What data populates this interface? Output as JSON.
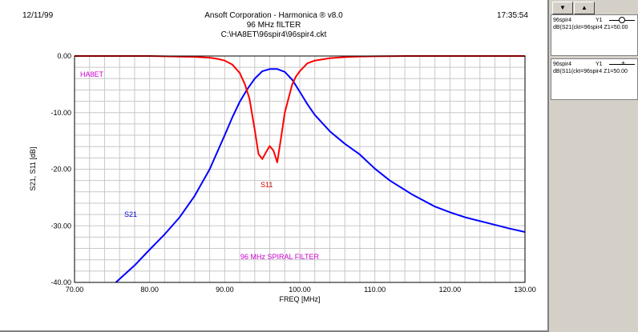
{
  "header": {
    "date": "12/11/99",
    "time": "17:35:54",
    "company": "Ansoft Corporation - Harmonica ® v8.0",
    "subtitle": "96 MHz fILTER",
    "filepath": "C:\\HA8ET\\96spir4\\96spir4.ckt"
  },
  "toolbar": {
    "down_icon": "▼",
    "up_icon": "▲"
  },
  "legend": [
    {
      "name": "96spir4",
      "axis": "Y1",
      "expr": "dB(S21(ckt=96spir4 Z1=50.00",
      "marker": "circle",
      "color": "#0000ff"
    },
    {
      "name": "96spir4",
      "axis": "Y1",
      "expr": "dB(S11(ckt=96spir4 Z1=50.00",
      "marker": "plus",
      "color": "#ff0000"
    }
  ],
  "chart_data": {
    "type": "line",
    "title": "96 MHz fILTER",
    "xlabel": "FREQ [MHz]",
    "ylabel": "S21, S11 [dB]",
    "xlim": [
      70,
      130
    ],
    "ylim": [
      -40,
      0
    ],
    "grid": true,
    "xticks": [
      "70.00",
      "80.00",
      "90.00",
      "100.00",
      "110.00",
      "120.00",
      "130.00"
    ],
    "yticks": [
      "0.00",
      "-10.00",
      "-20.00",
      "-30.00",
      "-40.00"
    ],
    "annotations": [
      "HA8ET",
      "96 MHz SPIRAL FILTER"
    ],
    "series": [
      {
        "name": "S21",
        "color": "#0000ff",
        "x": [
          75.5,
          78,
          80,
          82,
          84,
          86,
          88,
          90,
          91,
          92,
          93,
          94,
          95,
          96,
          97,
          98,
          99,
          100,
          101,
          102,
          104,
          106,
          108,
          110,
          112,
          115,
          118,
          120,
          122,
          125,
          128,
          130
        ],
        "y": [
          -40,
          -37,
          -34.2,
          -31.5,
          -28.5,
          -24.7,
          -20,
          -14,
          -10.9,
          -8.1,
          -5.9,
          -4,
          -2.7,
          -2.3,
          -2.3,
          -2.8,
          -4.2,
          -6.3,
          -8.5,
          -10.4,
          -13.3,
          -15.5,
          -17.4,
          -19.9,
          -22,
          -24.5,
          -26.6,
          -27.6,
          -28.5,
          -29.5,
          -30.5,
          -31.1
        ]
      },
      {
        "name": "S11",
        "color": "#ff0000",
        "x": [
          70,
          80,
          84,
          86,
          88,
          89,
          90,
          91,
          92,
          92.7,
          93.3,
          94,
          94.5,
          95,
          95.5,
          96,
          96.5,
          97,
          97.5,
          98,
          98.6,
          99,
          99.5,
          100,
          101,
          102,
          104,
          106,
          108,
          110,
          115,
          120,
          130
        ],
        "y": [
          0,
          0,
          -0.1,
          -0.15,
          -0.3,
          -0.5,
          -0.8,
          -1.5,
          -3,
          -5,
          -7.5,
          -13,
          -17.3,
          -18.2,
          -17,
          -15.9,
          -16.7,
          -18.8,
          -14.5,
          -10,
          -7,
          -5,
          -3.6,
          -2.7,
          -1.3,
          -0.8,
          -0.4,
          -0.2,
          -0.08,
          -0.05,
          0,
          0,
          0
        ]
      }
    ]
  }
}
